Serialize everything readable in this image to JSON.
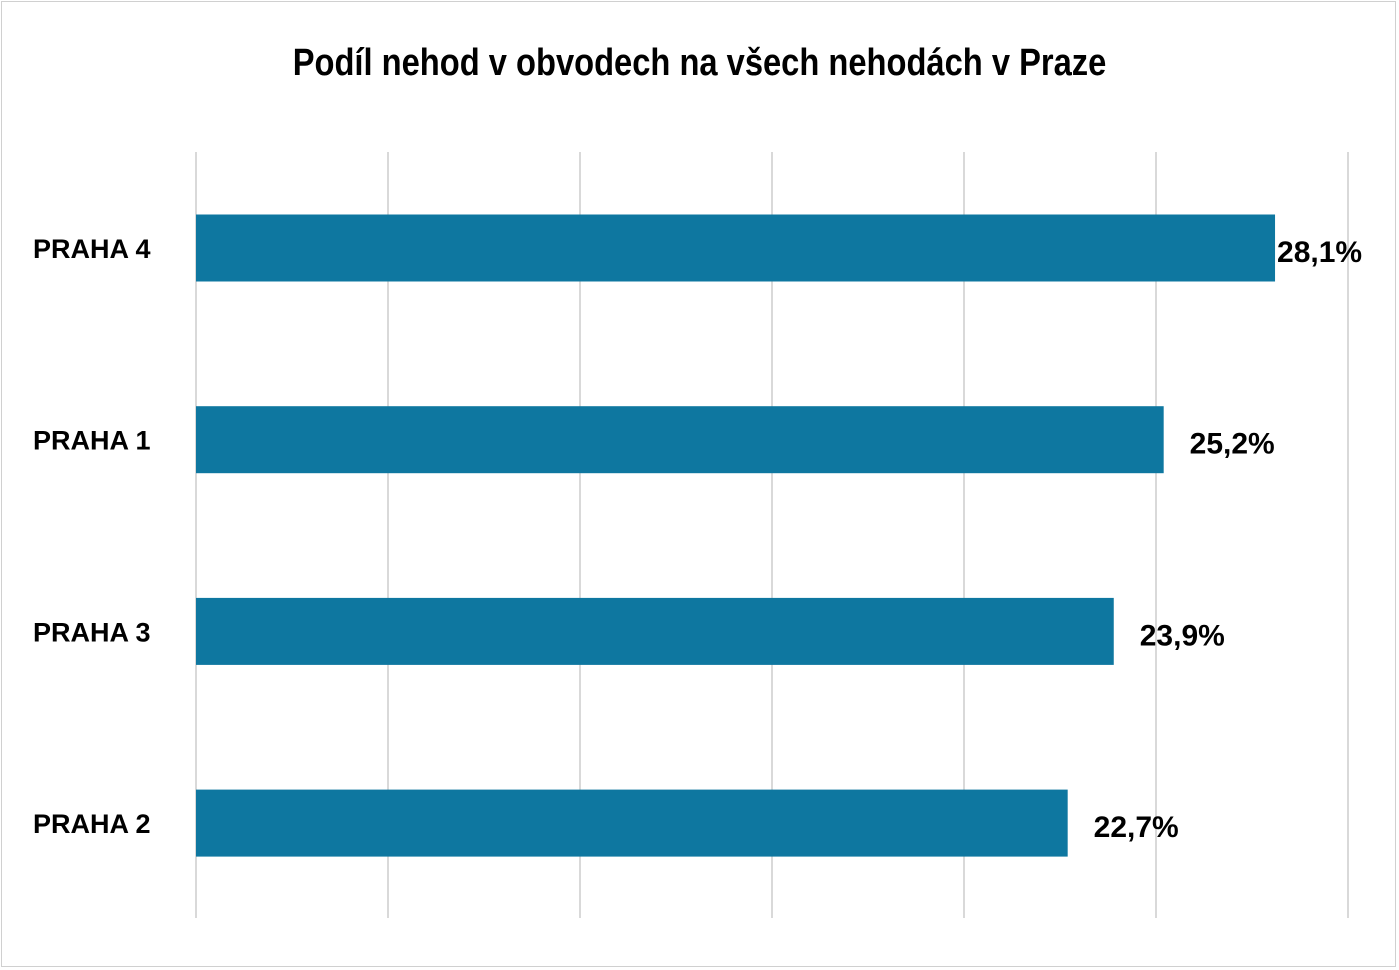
{
  "chart_data": {
    "type": "bar",
    "orientation": "horizontal",
    "title": "Podíl nehod v obvodech na všech nehodách v Praze",
    "categories": [
      "PRAHA 4",
      "PRAHA 1",
      "PRAHA 3",
      "PRAHA 2"
    ],
    "values": [
      28.1,
      25.2,
      23.9,
      22.7
    ],
    "data_labels": [
      "28,1%",
      "25,2%",
      "23,9%",
      "22,7%"
    ],
    "xlim": [
      0,
      30
    ],
    "grid_step": 5,
    "grid": true,
    "xlabel": "",
    "ylabel": "",
    "bar_color": "#0E77A0"
  }
}
